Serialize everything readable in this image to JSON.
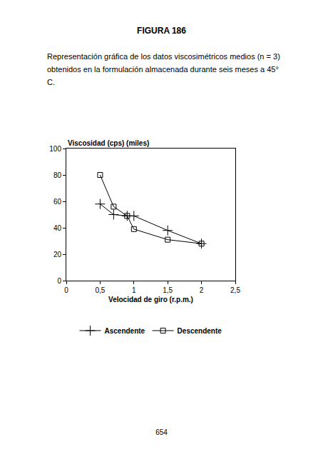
{
  "page": {
    "heading": "FIGURA 186",
    "caption": "Representación gráfica de los datos viscosimétricos medios (n = 3) obtenidos en la formulación almacenada durante seis meses a 45° C.",
    "page_number": "654"
  },
  "chart_data": {
    "type": "line",
    "y_label": "Viscosidad (cps) (miles)",
    "x_label": "Velocidad de giro (r.p.m.)",
    "x": [
      0.5,
      0.7,
      0.9,
      1,
      1.5,
      2
    ],
    "series": [
      {
        "name": "Ascendente",
        "color": "#000000",
        "marker": "cross",
        "values": [
          58,
          50,
          49,
          49,
          38,
          28
        ]
      },
      {
        "name": "Descendente",
        "color": "#000000",
        "marker": "square",
        "values": [
          80,
          56,
          49,
          39,
          31,
          28
        ]
      }
    ],
    "xlim": [
      0,
      2.5
    ],
    "xticks": [
      0,
      {
        "value": 0.5,
        "label": "0,5"
      },
      1,
      {
        "value": 1.5,
        "label": "1,5"
      },
      2,
      {
        "value": 2.5,
        "label": "2,5"
      }
    ],
    "ylim": [
      0,
      100
    ],
    "yticks": [
      0,
      20,
      40,
      60,
      80,
      100
    ],
    "grid": false,
    "legend": "bottom"
  }
}
